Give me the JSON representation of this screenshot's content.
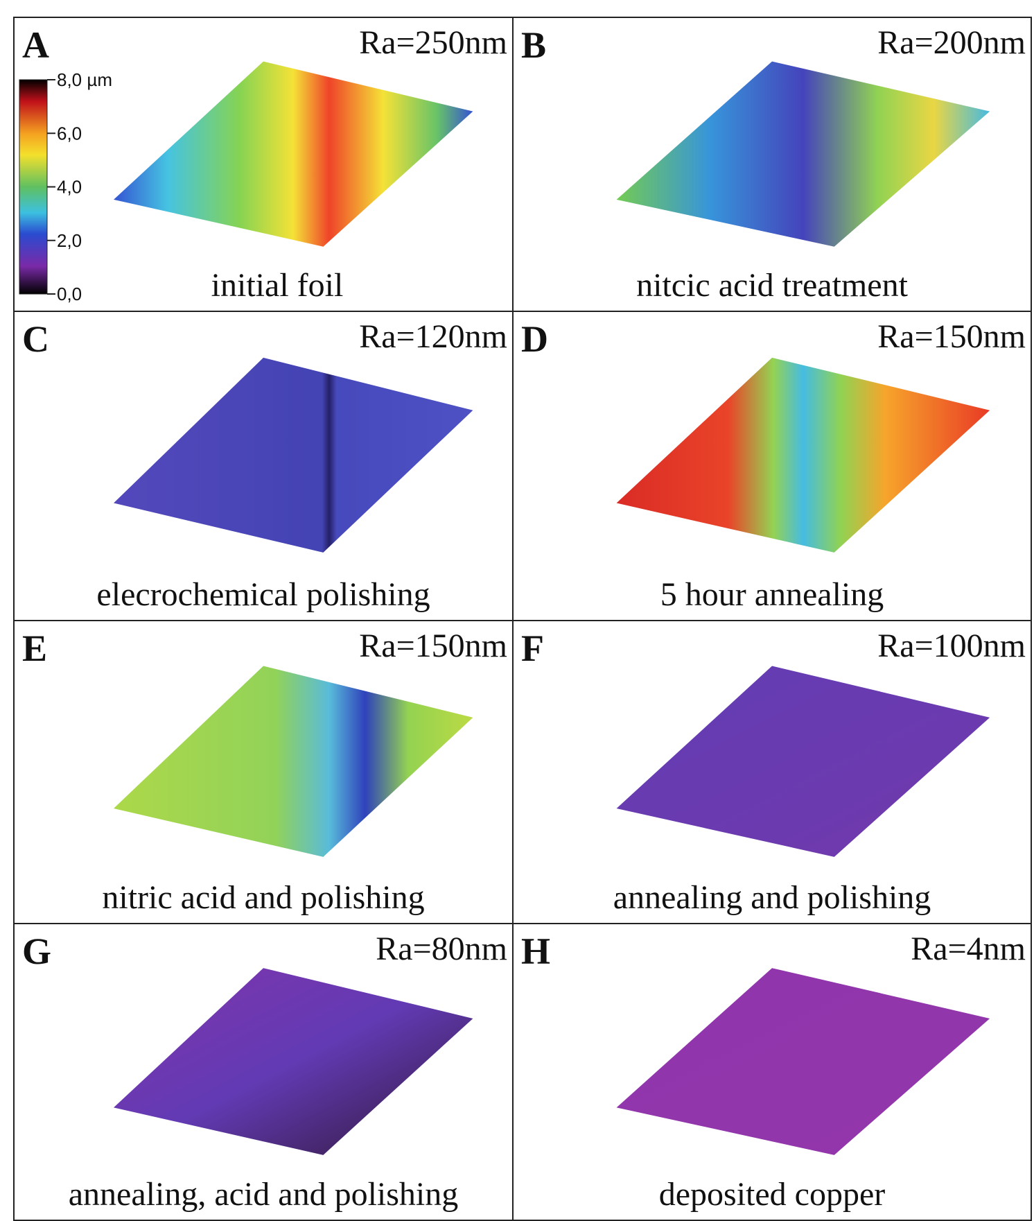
{
  "panels": [
    {
      "letter": "A",
      "ra": "Ra=250nm",
      "caption": "initial foil",
      "colorbar": [
        "8,0 µm",
        "6,0",
        "4,0",
        "2,0",
        "0,0"
      ]
    },
    {
      "letter": "B",
      "ra": "Ra=200nm",
      "caption": "nitcic acid treatment"
    },
    {
      "letter": "C",
      "ra": "Ra=120nm",
      "caption": "elecrochemical polishing"
    },
    {
      "letter": "D",
      "ra": "Ra=150nm",
      "caption": "5 hour annealing"
    },
    {
      "letter": "E",
      "ra": "Ra=150nm",
      "caption": "nitric acid and polishing"
    },
    {
      "letter": "F",
      "ra": "Ra=100nm",
      "caption": "annealing and polishing"
    },
    {
      "letter": "G",
      "ra": "Ra=80nm",
      "caption": "annealing, acid and polishing"
    },
    {
      "letter": "H",
      "ra": "Ra=4nm",
      "caption": "deposited copper"
    }
  ]
}
